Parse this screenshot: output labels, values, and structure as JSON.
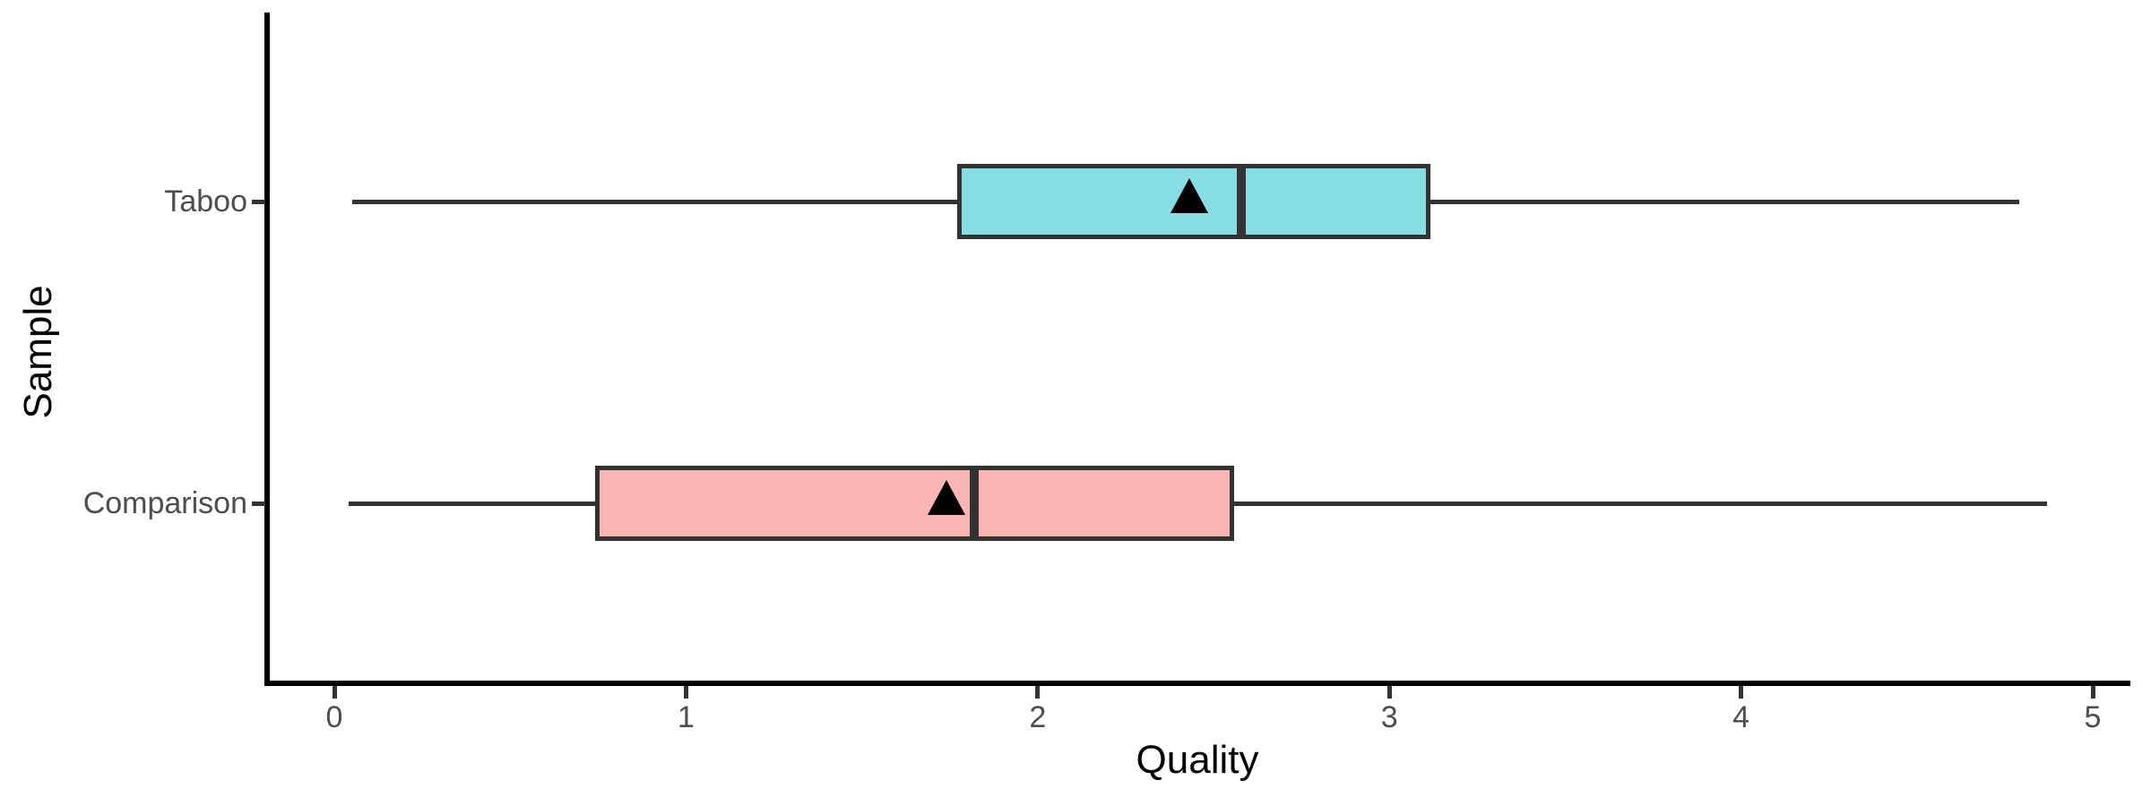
{
  "chart_data": {
    "type": "boxplot",
    "orientation": "horizontal",
    "title": "",
    "xlabel": "Quality",
    "ylabel": "Sample",
    "x_ticks": [
      0,
      1,
      2,
      3,
      4,
      5
    ],
    "x_range": [
      0,
      5
    ],
    "grid": "off",
    "legend": "none",
    "categories": [
      "Taboo",
      "Comparison"
    ],
    "mean_marker": "filled-black-triangle-up",
    "boxes": [
      {
        "label": "Taboo",
        "min": 0.05,
        "q1": 1.78,
        "median": 2.58,
        "q3": 3.11,
        "max": 4.79,
        "mean": 2.43,
        "fill": "#86DDE3"
      },
      {
        "label": "Comparison",
        "min": 0.04,
        "q1": 0.75,
        "median": 1.82,
        "q3": 2.55,
        "max": 4.87,
        "mean": 1.74,
        "fill": "#FAB6B2"
      }
    ],
    "colors": {
      "box_outline": "#333333",
      "whisker": "#333333",
      "median_line": "#333333",
      "mean_marker": "#000000",
      "axis_line": "#000000",
      "tick_label": "#4D4D4D",
      "axis_title": "#000000",
      "background": "#FFFFFF"
    }
  }
}
